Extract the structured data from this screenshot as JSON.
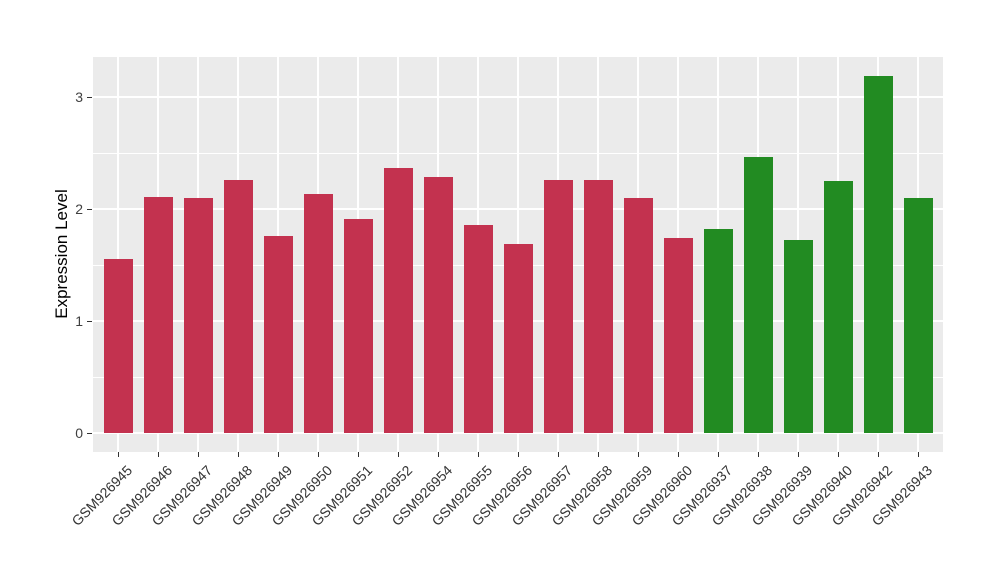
{
  "chart_data": {
    "type": "bar",
    "title": "",
    "xlabel": "",
    "ylabel": "Expression Level",
    "categories": [
      "GSM926945",
      "GSM926946",
      "GSM926947",
      "GSM926948",
      "GSM926949",
      "GSM926950",
      "GSM926951",
      "GSM926952",
      "GSM926954",
      "GSM926955",
      "GSM926956",
      "GSM926957",
      "GSM926958",
      "GSM926959",
      "GSM926960",
      "GSM926937",
      "GSM926938",
      "GSM926939",
      "GSM926940",
      "GSM926942",
      "GSM926943"
    ],
    "values": [
      1.55,
      2.11,
      2.1,
      2.26,
      1.76,
      2.13,
      1.91,
      2.37,
      2.29,
      1.86,
      1.69,
      2.26,
      2.26,
      2.1,
      1.74,
      1.82,
      2.46,
      1.72,
      2.25,
      3.19,
      2.1
    ],
    "groups": [
      "crimson",
      "crimson",
      "crimson",
      "crimson",
      "crimson",
      "crimson",
      "crimson",
      "crimson",
      "crimson",
      "crimson",
      "crimson",
      "crimson",
      "crimson",
      "crimson",
      "crimson",
      "green",
      "green",
      "green",
      "green",
      "green",
      "green"
    ],
    "group_colors": {
      "crimson": "#C3324F",
      "green": "#228B22"
    },
    "yticks": [
      0,
      1,
      2,
      3
    ],
    "yticks_minor": [
      0.5,
      1.5,
      2.5
    ],
    "ylim": [
      0,
      3.36
    ],
    "grid": "on",
    "legend": "none",
    "panel_bg": "#EBEBEB",
    "grid_color": "#FFFFFF",
    "axis_text_color": "#333333"
  }
}
